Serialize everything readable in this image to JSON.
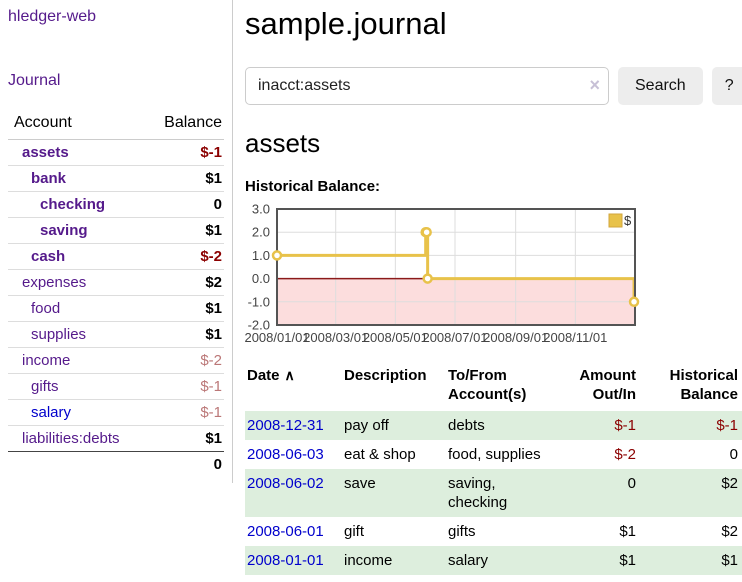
{
  "app": {
    "title": "hledger-web",
    "nav_journal": "Journal"
  },
  "sidebar": {
    "table": {
      "col_account": "Account",
      "col_balance": "Balance"
    },
    "accounts": [
      {
        "name": "assets",
        "balance": "$-1",
        "level": 1,
        "bold": true,
        "negative": "strong"
      },
      {
        "name": "bank",
        "balance": "$1",
        "level": 2,
        "bold": true,
        "negative": "none"
      },
      {
        "name": "checking",
        "balance": "0",
        "level": 3,
        "bold": true,
        "negative": "none"
      },
      {
        "name": "saving",
        "balance": "$1",
        "level": 3,
        "bold": true,
        "negative": "none"
      },
      {
        "name": "cash",
        "balance": "$-2",
        "level": 2,
        "bold": true,
        "negative": "strong"
      },
      {
        "name": "expenses",
        "balance": "$2",
        "level": 1,
        "bold": false,
        "negative": "none"
      },
      {
        "name": "food",
        "balance": "$1",
        "level": 2,
        "bold": false,
        "negative": "none"
      },
      {
        "name": "supplies",
        "balance": "$1",
        "level": 2,
        "bold": false,
        "negative": "none"
      },
      {
        "name": "income",
        "balance": "$-2",
        "level": 1,
        "bold": false,
        "negative": "soft"
      },
      {
        "name": "gifts",
        "balance": "$-1",
        "level": 2,
        "bold": false,
        "negative": "soft"
      },
      {
        "name": "salary",
        "balance": "$-1",
        "level": 2,
        "bold": false,
        "negative": "soft",
        "link": "blue"
      },
      {
        "name": "liabilities:debts",
        "balance": "$1",
        "level": 1,
        "bold": false,
        "negative": "none"
      }
    ],
    "total": "0"
  },
  "header": {
    "title": "sample.journal"
  },
  "search": {
    "query": "inacct:assets",
    "clear_icon": "×",
    "button": "Search",
    "help_button": "?"
  },
  "account_page": {
    "heading": "assets",
    "chart_title": "Historical Balance:"
  },
  "chart_data": {
    "type": "line",
    "title": "Historical Balance:",
    "step": true,
    "x_unit": "days since 2008-01-01",
    "xlim": [
      0,
      366
    ],
    "ylim": [
      -2,
      3
    ],
    "y_ticks": [
      3.0,
      2.0,
      1.0,
      0.0,
      -1.0,
      -2.0
    ],
    "x_ticks": [
      {
        "pos": 0,
        "label": "2008/01/01"
      },
      {
        "pos": 60,
        "label": "2008/03/01"
      },
      {
        "pos": 121,
        "label": "2008/05/01"
      },
      {
        "pos": 182,
        "label": "2008/07/01"
      },
      {
        "pos": 244,
        "label": "2008/09/01"
      },
      {
        "pos": 305,
        "label": "2008/11/01"
      },
      {
        "pos": 366,
        "label": ""
      }
    ],
    "series": [
      {
        "name": "$",
        "color": "#e8c24a",
        "points": [
          {
            "x": 0,
            "y": 1,
            "date": "2008-01-01"
          },
          {
            "x": 152,
            "y": 2,
            "date": "2008-06-01"
          },
          {
            "x": 153,
            "y": 2,
            "date": "2008-06-02"
          },
          {
            "x": 154,
            "y": 0,
            "date": "2008-06-03"
          },
          {
            "x": 365,
            "y": -1,
            "date": "2008-12-31"
          }
        ]
      }
    ],
    "legend": [
      {
        "label": "$",
        "color": "#e8c24a"
      }
    ],
    "legend_position": "top-right",
    "grid": true,
    "grid_color": "#dddddd",
    "border_color": "#545454",
    "negative_region_fill": "#fcdddd",
    "zero_line_color": "#8b1a1a",
    "tick_label_color": "#444444"
  },
  "register": {
    "columns": [
      "Date",
      "Description",
      "To/From Account(s)",
      "Amount Out/In",
      "Historical Balance"
    ],
    "sort_indicator": "∧",
    "rows": [
      {
        "date": "2008-12-31",
        "description": "pay off",
        "accounts": "debts",
        "amount": "$-1",
        "balance": "$-1",
        "amount_negative": true,
        "balance_negative": true
      },
      {
        "date": "2008-06-03",
        "description": "eat & shop",
        "accounts": "food, supplies",
        "amount": "$-2",
        "balance": "0",
        "amount_negative": true,
        "balance_negative": false
      },
      {
        "date": "2008-06-02",
        "description": "save",
        "accounts": "saving, checking",
        "amount": "0",
        "balance": "$2",
        "amount_negative": false,
        "balance_negative": false
      },
      {
        "date": "2008-06-01",
        "description": "gift",
        "accounts": "gifts",
        "amount": "$1",
        "balance": "$2",
        "amount_negative": false,
        "balance_negative": false
      },
      {
        "date": "2008-01-01",
        "description": "income",
        "accounts": "salary",
        "amount": "$1",
        "balance": "$1",
        "amount_negative": false,
        "balance_negative": false
      }
    ]
  }
}
